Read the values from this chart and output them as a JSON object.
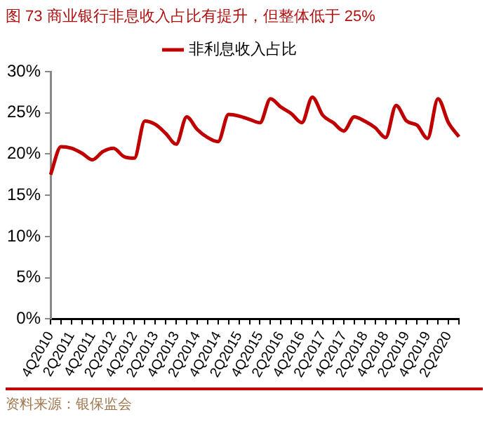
{
  "chart_data": {
    "type": "line",
    "title": "图 73  商业银行非息收入占比有提升，但整体低于 25%",
    "annotations": [
      "资料来源：银保监会"
    ],
    "categories": [
      "4Q2010",
      null,
      "2Q2011",
      null,
      "4Q2011",
      null,
      "2Q2012",
      null,
      "4Q2012",
      null,
      "2Q2013",
      null,
      "4Q2013",
      null,
      "2Q2014",
      null,
      "4Q2014",
      null,
      "2Q2015",
      null,
      "4Q2015",
      null,
      "2Q2016",
      null,
      "4Q2016",
      null,
      "2Q2017",
      null,
      "4Q2017",
      null,
      "2Q2018",
      null,
      "4Q2018",
      null,
      "2Q2019",
      null,
      "4Q2019",
      null,
      "2Q2020",
      null
    ],
    "series": [
      {
        "name": "非利息收入占比",
        "color": "#c00000",
        "values": [
          17.5,
          20.9,
          20.7,
          20.1,
          19.3,
          20.3,
          20.7,
          19.7,
          19.5,
          24.0,
          23.6,
          22.5,
          21.2,
          24.5,
          23.0,
          22.0,
          21.5,
          24.8,
          24.6,
          24.2,
          23.8,
          26.7,
          25.7,
          24.9,
          23.8,
          26.9,
          24.7,
          23.8,
          22.8,
          24.5,
          24.0,
          23.2,
          22.0,
          25.9,
          24.0,
          23.5,
          21.9,
          26.7,
          23.8,
          22.1
        ]
      }
    ],
    "ylim": [
      0,
      30
    ],
    "yticks": [
      {
        "value": 0,
        "label": "0%"
      },
      {
        "value": 5,
        "label": "5%"
      },
      {
        "value": 10,
        "label": "10%"
      },
      {
        "value": 15,
        "label": "15%"
      },
      {
        "value": 20,
        "label": "20%"
      },
      {
        "value": 25,
        "label": "25%"
      },
      {
        "value": 30,
        "label": "30%"
      }
    ],
    "grid": false,
    "legend": "top",
    "marker": "none",
    "line_style": "solid"
  }
}
